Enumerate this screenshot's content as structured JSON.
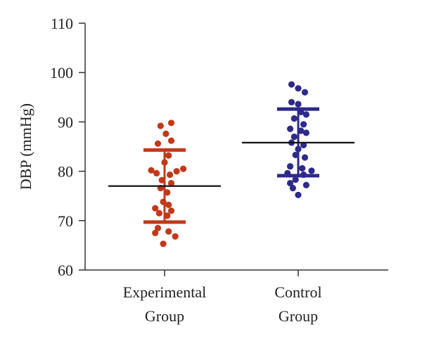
{
  "chart_data": {
    "type": "scatter",
    "title": "",
    "ylabel": "DBP (mmHg)",
    "xlabel": "",
    "ylim": [
      60,
      110
    ],
    "yticks": [
      60,
      70,
      80,
      90,
      100,
      110
    ],
    "grid": false,
    "legend": "none",
    "categories": [
      [
        "Experimental",
        "Group"
      ],
      [
        "Control",
        "Group"
      ]
    ],
    "series": [
      {
        "category_index": 0,
        "color": "#c1391a",
        "mean": 77.0,
        "sd_upper": 84.3,
        "sd_lower": 69.7,
        "points": [
          {
            "y": 89.8,
            "dx": 0.05
          },
          {
            "y": 89.2,
            "dx": -0.03
          },
          {
            "y": 87.6,
            "dx": 0.01
          },
          {
            "y": 86.2,
            "dx": 0.05
          },
          {
            "y": 85.6,
            "dx": -0.05
          },
          {
            "y": 83.2,
            "dx": 0.03
          },
          {
            "y": 81.8,
            "dx": 0.0
          },
          {
            "y": 80.5,
            "dx": 0.14
          },
          {
            "y": 80.2,
            "dx": -0.1
          },
          {
            "y": 80.0,
            "dx": 0.09
          },
          {
            "y": 79.6,
            "dx": -0.06
          },
          {
            "y": 79.3,
            "dx": 0.04
          },
          {
            "y": 78.2,
            "dx": -0.02
          },
          {
            "y": 77.6,
            "dx": 0.05
          },
          {
            "y": 76.6,
            "dx": -0.03
          },
          {
            "y": 75.7,
            "dx": 0.02
          },
          {
            "y": 73.8,
            "dx": -0.01
          },
          {
            "y": 73.2,
            "dx": 0.03
          },
          {
            "y": 72.5,
            "dx": -0.07
          },
          {
            "y": 72.0,
            "dx": 0.05
          },
          {
            "y": 71.5,
            "dx": -0.04
          },
          {
            "y": 71.0,
            "dx": 0.02
          },
          {
            "y": 68.5,
            "dx": -0.05
          },
          {
            "y": 67.8,
            "dx": 0.03
          },
          {
            "y": 67.5,
            "dx": -0.07
          },
          {
            "y": 66.8,
            "dx": 0.08
          },
          {
            "y": 65.3,
            "dx": -0.01
          }
        ]
      },
      {
        "category_index": 1,
        "color": "#2e2a8a",
        "mean": 85.8,
        "sd_upper": 92.6,
        "sd_lower": 79.1,
        "points": [
          {
            "y": 97.6,
            "dx": -0.05
          },
          {
            "y": 96.8,
            "dx": 0.0
          },
          {
            "y": 96.0,
            "dx": 0.05
          },
          {
            "y": 94.0,
            "dx": -0.05
          },
          {
            "y": 93.6,
            "dx": 0.0
          },
          {
            "y": 92.0,
            "dx": 0.02
          },
          {
            "y": 91.5,
            "dx": 0.06
          },
          {
            "y": 90.7,
            "dx": -0.03
          },
          {
            "y": 89.5,
            "dx": 0.04
          },
          {
            "y": 88.6,
            "dx": -0.06
          },
          {
            "y": 88.2,
            "dx": 0.02
          },
          {
            "y": 87.8,
            "dx": 0.06
          },
          {
            "y": 87.0,
            "dx": -0.03
          },
          {
            "y": 85.8,
            "dx": -0.05
          },
          {
            "y": 85.3,
            "dx": 0.04
          },
          {
            "y": 84.5,
            "dx": 0.0
          },
          {
            "y": 83.3,
            "dx": -0.02
          },
          {
            "y": 82.8,
            "dx": 0.05
          },
          {
            "y": 81.0,
            "dx": -0.06
          },
          {
            "y": 80.6,
            "dx": 0.03
          },
          {
            "y": 80.1,
            "dx": 0.1
          },
          {
            "y": 79.6,
            "dx": -0.08
          },
          {
            "y": 79.3,
            "dx": 0.04
          },
          {
            "y": 78.3,
            "dx": -0.02
          },
          {
            "y": 77.6,
            "dx": -0.06
          },
          {
            "y": 77.2,
            "dx": 0.06
          },
          {
            "y": 76.6,
            "dx": -0.04
          },
          {
            "y": 75.2,
            "dx": 0.0
          }
        ]
      }
    ]
  }
}
